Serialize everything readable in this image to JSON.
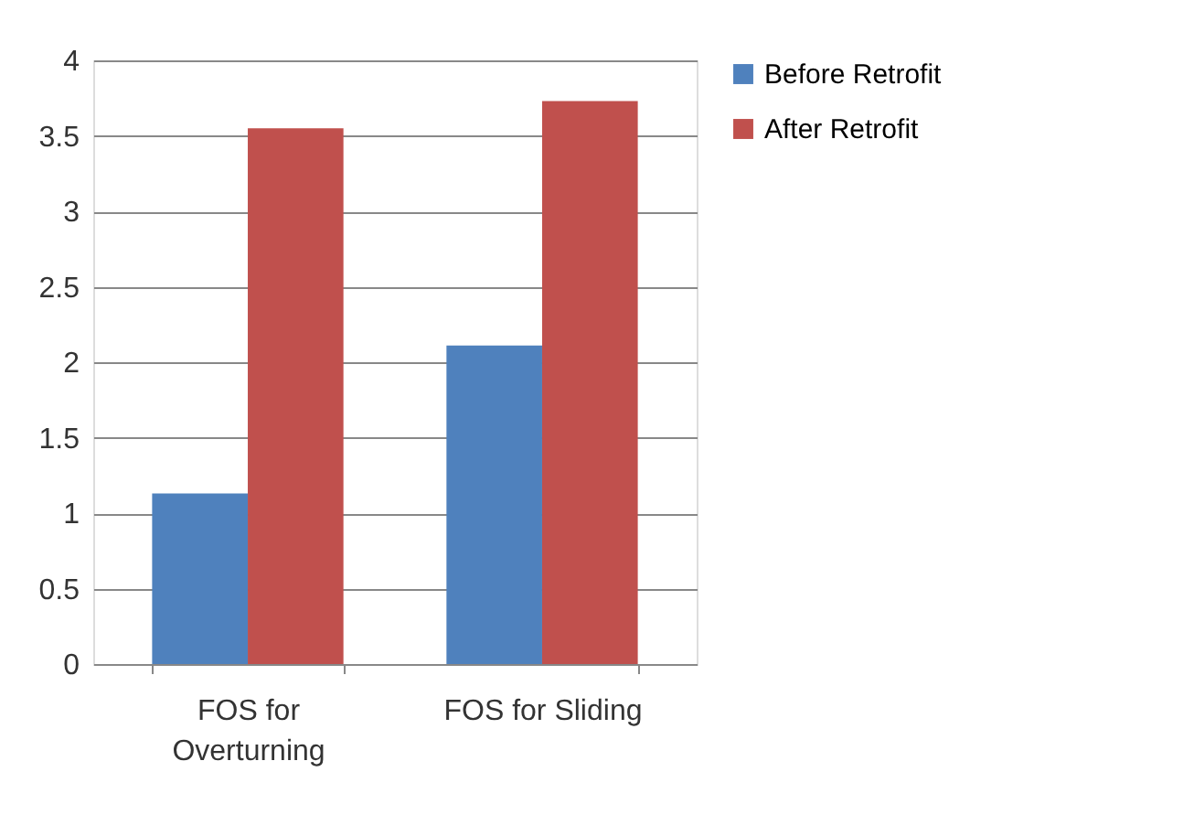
{
  "chart_data": {
    "type": "bar",
    "categories": [
      "FOS for Overturning",
      "FOS for Sliding"
    ],
    "series": [
      {
        "name": "Before Retrofit",
        "color": "#4f81bd",
        "values": [
          1.13,
          2.11
        ]
      },
      {
        "name": "After Retrofit",
        "color": "#c0504d",
        "values": [
          3.55,
          3.73
        ]
      }
    ],
    "ylim": [
      0,
      4
    ],
    "yticks": [
      0,
      0.5,
      1,
      1.5,
      2,
      2.5,
      3,
      3.5,
      4
    ],
    "grid": "y",
    "legend": "right"
  }
}
